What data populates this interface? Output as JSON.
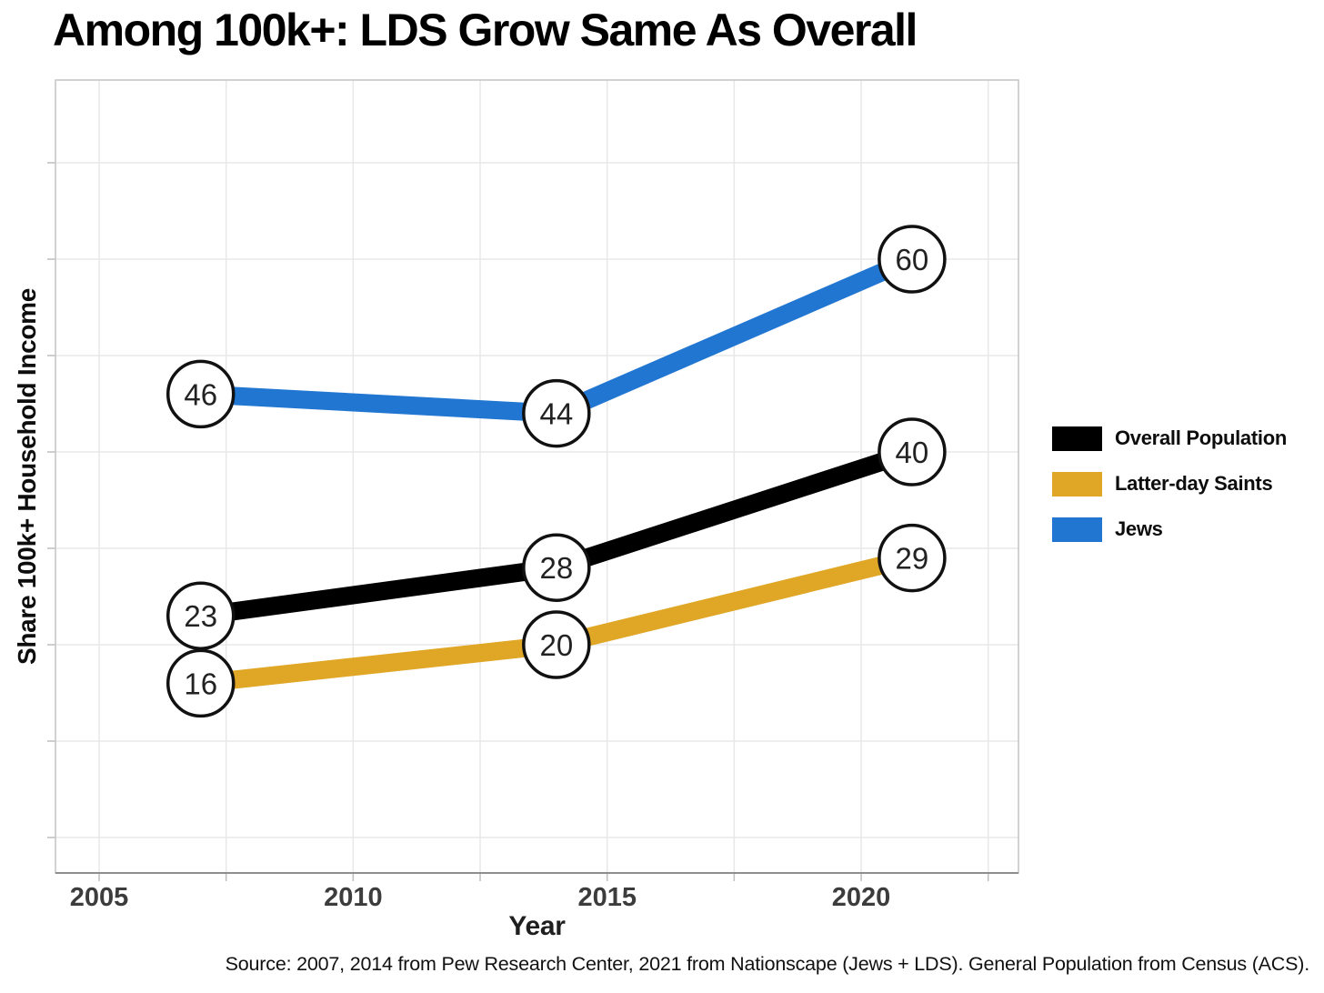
{
  "source": "Source: 2007, 2014 from Pew Research Center, 2021 from Nationscape (Jews + LDS). General Population from Census (ACS).",
  "style": {
    "grid_color": "#e8e8e8",
    "border_color": "#c4c4c4",
    "axis_bottom_color": "#8e8e8e",
    "tick_color": "#bdbdbd",
    "tick_label_color": "#3c3c3c",
    "point_label_color": "#222222",
    "circle_fill": "#ffffff",
    "circle_stroke": "#111111",
    "background": "#ffffff"
  },
  "chart_data": {
    "type": "line",
    "title": "Among 100k+: LDS Grow Same As Overall",
    "xlabel": "Year",
    "ylabel": "Share 100k+ Household Income",
    "x": [
      2007,
      2014,
      2021
    ],
    "series": [
      {
        "name": "Overall Population",
        "color": "#000000",
        "values": [
          23,
          28,
          40
        ]
      },
      {
        "name": "Latter-day Saints",
        "color": "#e0a626",
        "values": [
          16,
          20,
          29
        ]
      },
      {
        "name": "Jews",
        "color": "#2176d2",
        "values": [
          46,
          44,
          60
        ]
      }
    ],
    "x_tick_values": [
      2005,
      2010,
      2015,
      2020
    ],
    "x_gridline_step": 2.5,
    "y_gridline_step": 10,
    "xlim": [
      2004.2,
      2023.1
    ],
    "ylim": [
      -3.7,
      78.6
    ],
    "grid": true,
    "legend_position": "right",
    "point_labels": "value in white circle at each data point"
  }
}
